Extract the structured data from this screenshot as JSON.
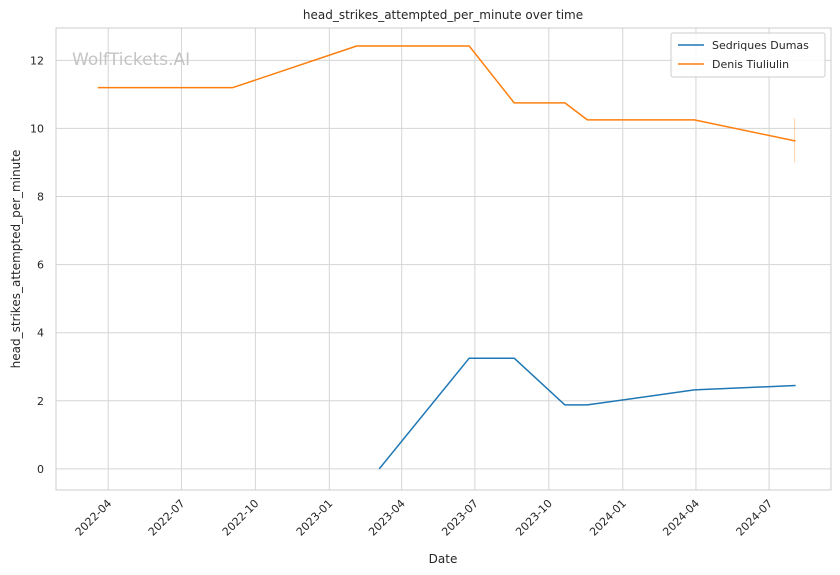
{
  "chart_data": {
    "type": "line",
    "title": "head_strikes_attempted_per_minute over time",
    "xlabel": "Date",
    "ylabel": "head_strikes_attempted_per_minute",
    "watermark": "WolfTickets.AI",
    "x_axis": {
      "type": "date",
      "range": [
        "2022-01-26",
        "2024-09-16"
      ],
      "ticks": [
        "2022-04-01",
        "2022-07-01",
        "2022-10-01",
        "2023-01-01",
        "2023-04-01",
        "2023-07-01",
        "2023-10-01",
        "2024-01-01",
        "2024-04-01",
        "2024-07-01"
      ],
      "tick_labels": [
        "2022-04",
        "2022-07",
        "2022-10",
        "2023-01",
        "2023-04",
        "2023-07",
        "2023-10",
        "2024-01",
        "2024-04",
        "2024-07"
      ]
    },
    "y_axis": {
      "range": [
        -0.62,
        12.95
      ],
      "ticks": [
        0,
        2,
        4,
        6,
        8,
        10,
        12
      ],
      "tick_labels": [
        "0",
        "2",
        "4",
        "6",
        "8",
        "10",
        "12"
      ]
    },
    "grid": true,
    "legend_position": "top-right",
    "series": [
      {
        "name": "Sedriques Dumas",
        "color": "#1f77b4",
        "points": [
          {
            "x": "2023-03-04",
            "y": 0.0
          },
          {
            "x": "2023-06-24",
            "y": 3.25
          },
          {
            "x": "2023-08-19",
            "y": 3.25
          },
          {
            "x": "2023-10-21",
            "y": 1.88
          },
          {
            "x": "2023-11-18",
            "y": 1.88
          },
          {
            "x": "2024-03-30",
            "y": 2.32
          },
          {
            "x": "2024-08-03",
            "y": 2.45
          }
        ]
      },
      {
        "name": "Denis Tiuliulin",
        "color": "#ff7f0e",
        "points": [
          {
            "x": "2022-03-19",
            "y": 11.2
          },
          {
            "x": "2022-09-03",
            "y": 11.2
          },
          {
            "x": "2023-02-04",
            "y": 12.42
          },
          {
            "x": "2023-06-24",
            "y": 12.42
          },
          {
            "x": "2023-08-19",
            "y": 10.75
          },
          {
            "x": "2023-10-21",
            "y": 10.75
          },
          {
            "x": "2023-11-18",
            "y": 10.25
          },
          {
            "x": "2024-03-30",
            "y": 10.25
          },
          {
            "x": "2024-08-03",
            "y": 9.63
          }
        ]
      }
    ]
  }
}
